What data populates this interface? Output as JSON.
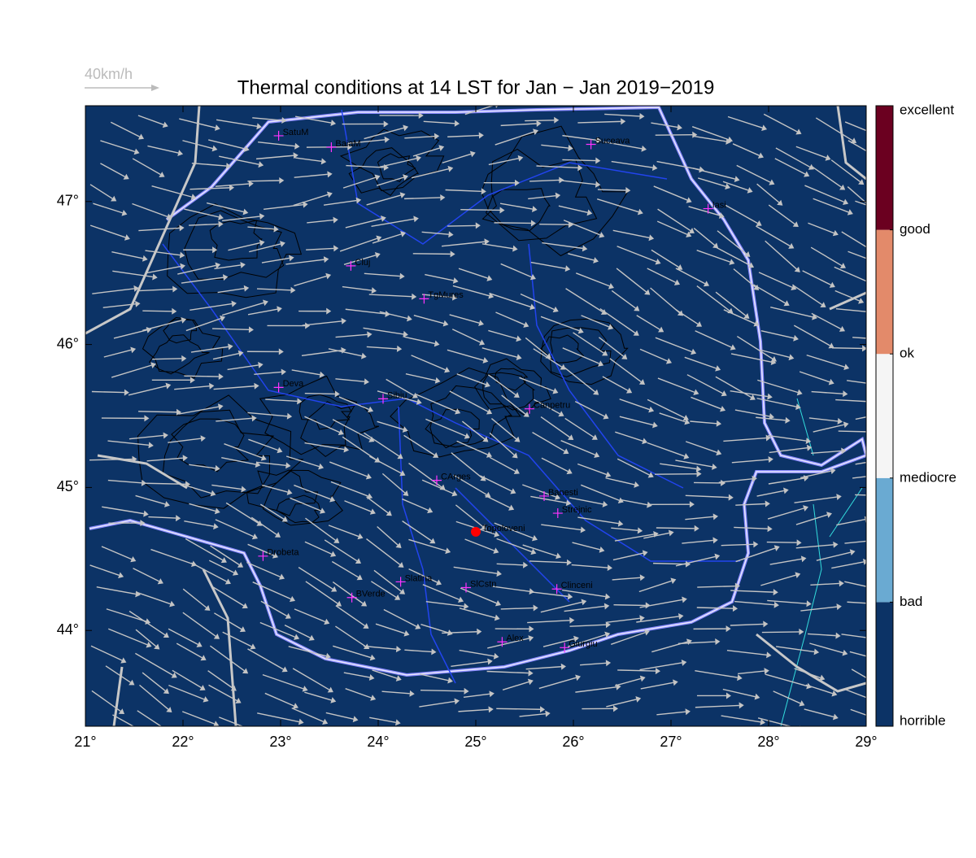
{
  "map": {
    "title": "Thermal conditions at 14 LST for Jan − Jan  2019−2019",
    "scale_label": "40km/h",
    "xlim": [
      21,
      29
    ],
    "ylim": [
      43.33,
      47.67
    ],
    "xticks": [
      {
        "value": 21,
        "label": "21°"
      },
      {
        "value": 22,
        "label": "22°"
      },
      {
        "value": 23,
        "label": "23°"
      },
      {
        "value": 24,
        "label": "24°"
      },
      {
        "value": 25,
        "label": "25°"
      },
      {
        "value": 26,
        "label": "26°"
      },
      {
        "value": 27,
        "label": "27°"
      },
      {
        "value": 28,
        "label": "28°"
      },
      {
        "value": 29,
        "label": "29°"
      }
    ],
    "yticks": [
      {
        "value": 44,
        "label": "44°"
      },
      {
        "value": 45,
        "label": "45°"
      },
      {
        "value": 46,
        "label": "46°"
      },
      {
        "value": 47,
        "label": "47°"
      }
    ],
    "background": "#0c3366",
    "stations": [
      {
        "name": "SatuM",
        "lon": 22.98,
        "lat": 47.46
      },
      {
        "name": "BaiaM",
        "lon": 23.52,
        "lat": 47.38
      },
      {
        "name": "Suceava",
        "lon": 26.18,
        "lat": 47.4
      },
      {
        "name": "Iasi",
        "lon": 27.38,
        "lat": 46.95
      },
      {
        "name": "Cluj",
        "lon": 23.72,
        "lat": 46.55
      },
      {
        "name": "TgMures",
        "lon": 24.47,
        "lat": 46.32
      },
      {
        "name": "Deva",
        "lon": 22.98,
        "lat": 45.7
      },
      {
        "name": "Sibiu",
        "lon": 24.05,
        "lat": 45.62
      },
      {
        "name": "Canpetru",
        "lon": 25.55,
        "lat": 45.55
      },
      {
        "name": "CArges",
        "lon": 24.6,
        "lat": 45.05
      },
      {
        "name": "Banesti",
        "lon": 25.7,
        "lat": 44.94
      },
      {
        "name": "Strejnic",
        "lon": 25.84,
        "lat": 44.82
      },
      {
        "name": "Drobeta",
        "lon": 22.82,
        "lat": 44.52
      },
      {
        "name": "Slatina",
        "lon": 24.23,
        "lat": 44.34
      },
      {
        "name": "SlCstn",
        "lon": 24.9,
        "lat": 44.3
      },
      {
        "name": "BVerde",
        "lon": 23.73,
        "lat": 44.23
      },
      {
        "name": "Clinceni",
        "lon": 25.83,
        "lat": 44.29
      },
      {
        "name": "Alex",
        "lon": 25.27,
        "lat": 43.92
      },
      {
        "name": "Giurgiu",
        "lon": 25.91,
        "lat": 43.88
      }
    ],
    "highlight": {
      "name": "Topoloveni",
      "lon": 25.0,
      "lat": 44.69,
      "color": "#ff0000"
    },
    "colorbar": {
      "labels": [
        "horrible",
        "bad",
        "mediocre",
        "ok",
        "good",
        "excellent"
      ],
      "colors": [
        "#0c3366",
        "#6aaad2",
        "#f5f5f5",
        "#e38a6a",
        "#6b0020"
      ]
    }
  }
}
